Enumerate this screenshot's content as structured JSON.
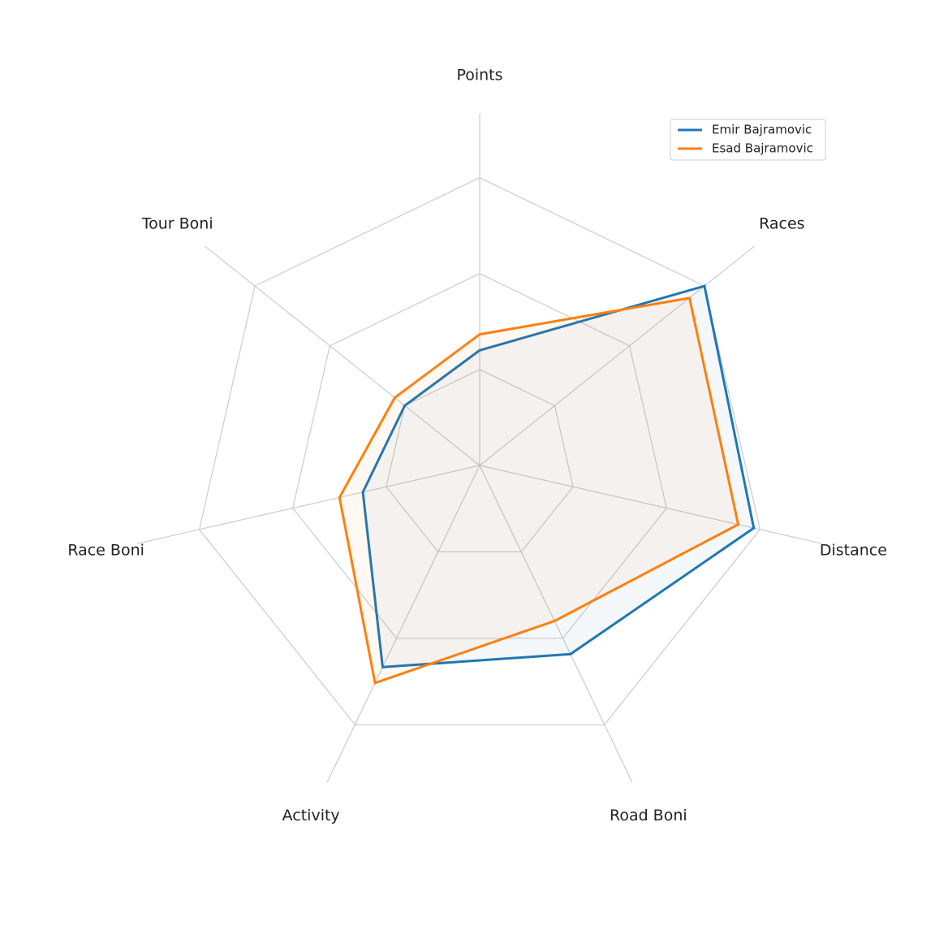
{
  "chart_data": {
    "type": "radar",
    "categories": [
      "Points",
      "Races",
      "Distance",
      "Road Boni",
      "Activity",
      "Race Boni",
      "Tour Boni"
    ],
    "series": [
      {
        "name": "Emir Bajramovic",
        "color": "#1f77b4",
        "values": [
          0.36,
          0.9,
          0.88,
          0.655,
          0.7,
          0.375,
          0.3
        ]
      },
      {
        "name": "Esad Bajramovic",
        "color": "#ff7f0e",
        "values": [
          0.41,
          0.84,
          0.83,
          0.54,
          0.755,
          0.45,
          0.34
        ]
      }
    ],
    "ylim": [
      0,
      1.1
    ],
    "yticks": [
      0.3,
      0.6,
      0.9
    ],
    "grid": true,
    "legend": "upper right"
  }
}
